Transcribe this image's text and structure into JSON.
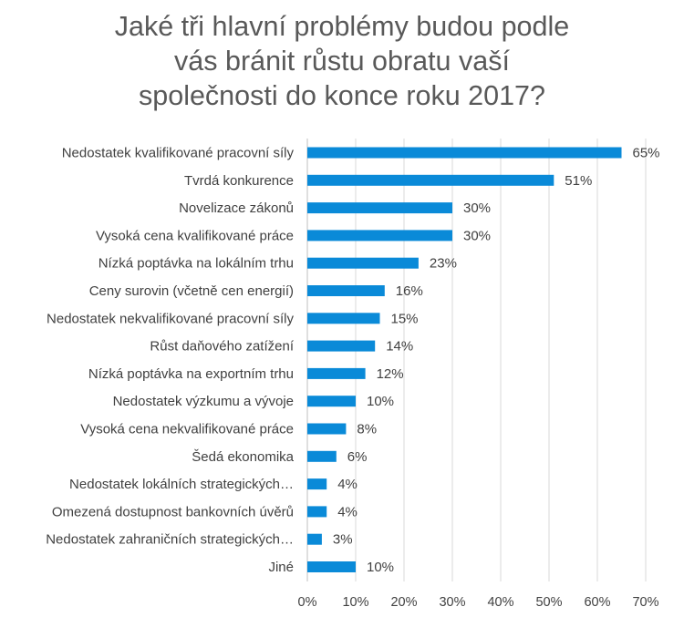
{
  "chart_data": {
    "type": "bar",
    "orientation": "horizontal",
    "title_lines": [
      "Jaké tři hlavní problémy budou podle",
      "vás bránit růstu obratu vaší",
      "společnosti do konce roku 2017?"
    ],
    "categories": [
      "Nedostatek kvalifikované pracovní síly",
      "Tvrdá konkurence",
      "Novelizace zákonů",
      "Vysoká cena kvalifikované práce",
      "Nízká poptávka na lokálním trhu",
      "Ceny surovin (včetně cen energií)",
      "Nedostatek nekvalifikované pracovní síly",
      "Růst daňového zatížení",
      "Nízká poptávka na exportním trhu",
      "Nedostatek výzkumu a vývoje",
      "Vysoká cena nekvalifikované práce",
      "Šedá ekonomika",
      "Nedostatek lokálních strategických…",
      "Omezená dostupnost bankovních úvěrů",
      "Nedostatek zahraničních strategických…",
      "Jiné"
    ],
    "values": [
      65,
      51,
      30,
      30,
      23,
      16,
      15,
      14,
      12,
      10,
      8,
      6,
      4,
      4,
      3,
      10
    ],
    "value_labels": [
      "65%",
      "51%",
      "30%",
      "30%",
      "23%",
      "16%",
      "15%",
      "14%",
      "12%",
      "10%",
      "8%",
      "6%",
      "4%",
      "4%",
      "3%",
      "10%"
    ],
    "xlim": [
      0,
      70
    ],
    "x_ticks": [
      0,
      10,
      20,
      30,
      40,
      50,
      60,
      70
    ],
    "x_tick_labels": [
      "0%",
      "10%",
      "20%",
      "30%",
      "40%",
      "50%",
      "60%",
      "70%"
    ],
    "grid": "vertical",
    "legend": "none",
    "bar_color": "#0A8AD8",
    "grid_color": "#D9D9D9",
    "text_color": "#404040",
    "title_color": "#595959"
  }
}
